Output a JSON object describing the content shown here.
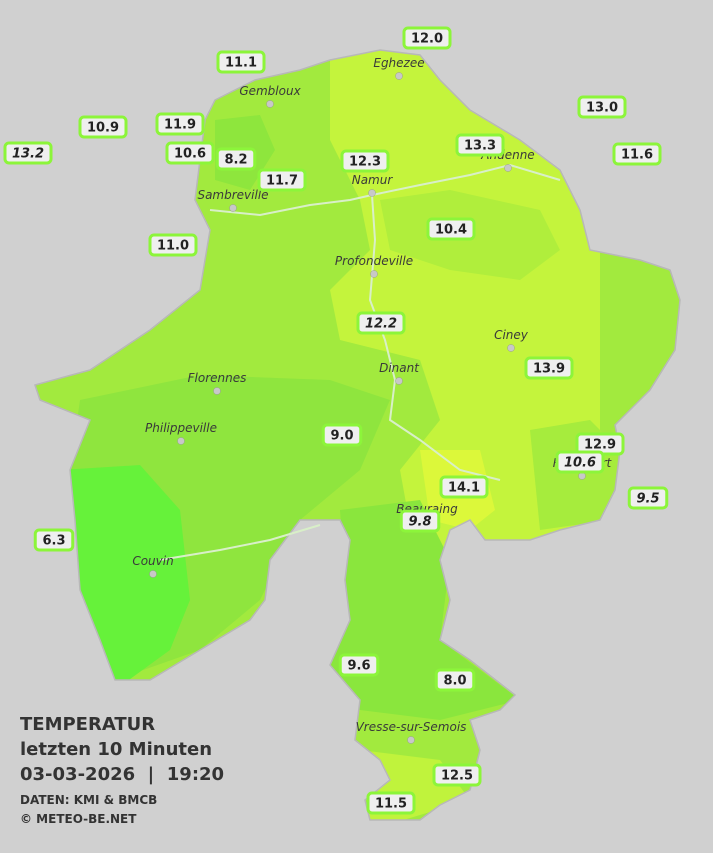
{
  "map": {
    "places": [
      "Eghezee",
      "Gembloux",
      "Andenne",
      "Namur",
      "Sambreville",
      "Profondeville",
      "Ciney",
      "Dinant",
      "Florennes",
      "Philippeville",
      "Rochefort",
      "Beauraing",
      "Couvin",
      "Vresse-sur-Semois"
    ],
    "stations": [
      {
        "label": "12.0",
        "italic": false
      },
      {
        "label": "11.1",
        "italic": false
      },
      {
        "label": "13.0",
        "italic": false
      },
      {
        "label": "10.9",
        "italic": false
      },
      {
        "label": "11.9",
        "italic": false
      },
      {
        "label": "13.2",
        "italic": true
      },
      {
        "label": "10.6",
        "italic": false
      },
      {
        "label": "8.2",
        "italic": false
      },
      {
        "label": "13.3",
        "italic": false
      },
      {
        "label": "11.6",
        "italic": false
      },
      {
        "label": "12.3",
        "italic": false
      },
      {
        "label": "11.7",
        "italic": false
      },
      {
        "label": "10.4",
        "italic": false
      },
      {
        "label": "11.0",
        "italic": false
      },
      {
        "label": "12.2",
        "italic": true
      },
      {
        "label": "13.9",
        "italic": false
      },
      {
        "label": "9.0",
        "italic": false
      },
      {
        "label": "12.9",
        "italic": false
      },
      {
        "label": "10.6",
        "italic": true
      },
      {
        "label": "14.1",
        "italic": false
      },
      {
        "label": "9.5",
        "italic": true
      },
      {
        "label": "9.8",
        "italic": true
      },
      {
        "label": "6.3",
        "italic": false
      },
      {
        "label": "9.6",
        "italic": false
      },
      {
        "label": "8.0",
        "italic": false
      },
      {
        "label": "12.5",
        "italic": false
      },
      {
        "label": "11.5",
        "italic": false
      }
    ]
  },
  "legend": {
    "title": "TEMPERATUR",
    "subtitle": "letzten 10 Minuten",
    "datetime": "03-03-2026  |  19:20",
    "source": "DATEN: KMI & BMCB",
    "copyright": "© METEO-BE.NET"
  }
}
